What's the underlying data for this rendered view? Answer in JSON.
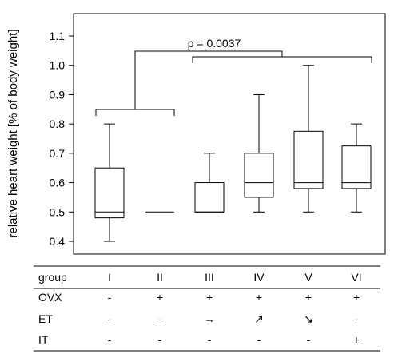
{
  "chart_data": {
    "type": "box",
    "title": "",
    "xlabel": "",
    "ylabel": "relative heart weight [% of body weight]",
    "ylim": [
      0.37,
      1.15
    ],
    "yticks": [
      "0.4",
      "0.5",
      "0.6",
      "0.7",
      "0.8",
      "0.9",
      "1.0",
      "1.1"
    ],
    "grid": false,
    "categories": [
      "I",
      "II",
      "III",
      "IV",
      "V",
      "VI"
    ],
    "boxes": [
      {
        "group": "I",
        "min": 0.4,
        "q1": 0.48,
        "median": 0.5,
        "q3": 0.65,
        "max": 0.8
      },
      {
        "group": "II",
        "min": 0.5,
        "q1": 0.5,
        "median": 0.5,
        "q3": 0.5,
        "max": 0.5
      },
      {
        "group": "III",
        "min": 0.5,
        "q1": 0.5,
        "median": 0.5,
        "q3": 0.6,
        "max": 0.7
      },
      {
        "group": "IV",
        "min": 0.5,
        "q1": 0.55,
        "median": 0.6,
        "q3": 0.7,
        "max": 0.9
      },
      {
        "group": "V",
        "min": 0.5,
        "q1": 0.58,
        "median": 0.6,
        "q3": 0.775,
        "max": 1.0
      },
      {
        "group": "VI",
        "min": 0.5,
        "q1": 0.58,
        "median": 0.6,
        "q3": 0.725,
        "max": 0.8
      }
    ],
    "annotation": {
      "text": "p = 0.0037",
      "group_a": [
        "I",
        "II"
      ],
      "group_b": [
        "III",
        "IV",
        "V",
        "VI"
      ]
    }
  },
  "table": {
    "rows": [
      {
        "label": "group",
        "cells": [
          "I",
          "II",
          "III",
          "IV",
          "V",
          "VI"
        ]
      },
      {
        "label": "OVX",
        "cells": [
          "-",
          "+",
          "+",
          "+",
          "+",
          "+"
        ]
      },
      {
        "label": "ET",
        "cells": [
          "-",
          "-",
          "→",
          "↗",
          "↘",
          "-"
        ]
      },
      {
        "label": "IT",
        "cells": [
          "-",
          "-",
          "-",
          "-",
          "-",
          "+"
        ]
      }
    ]
  }
}
